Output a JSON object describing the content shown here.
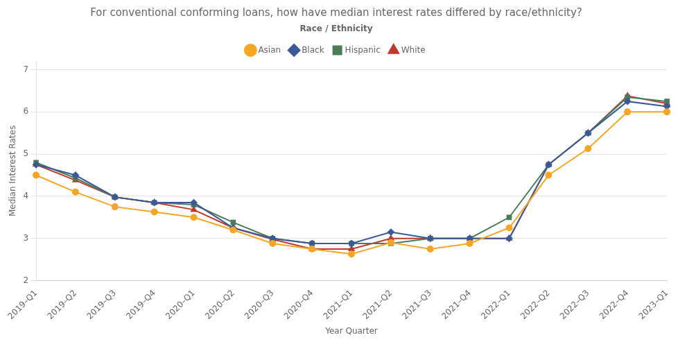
{
  "chart_data": {
    "type": "line",
    "title": "For conventional conforming loans, how have median interest rates differed by race/ethnicity?",
    "x_label": "Year Quarter",
    "y_label": "Median Interest Rates",
    "legend_title": "Race / Ethnicity",
    "categories": [
      "2019–Q1",
      "2019–Q2",
      "2019–Q3",
      "2019–Q4",
      "2020–Q1",
      "2020–Q2",
      "2020–Q3",
      "2020–Q4",
      "2021–Q1",
      "2021–Q2",
      "2021–Q3",
      "2021–Q4",
      "2022–Q1",
      "2022–Q2",
      "2022–Q3",
      "2022–Q4",
      "2023–Q1"
    ],
    "series": [
      {
        "name": "Asian",
        "color": "#f5a623",
        "marker": "circle",
        "values": [
          4.5,
          4.1,
          3.75,
          3.63,
          3.5,
          3.2,
          2.88,
          2.75,
          2.63,
          2.9,
          2.75,
          2.88,
          3.25,
          4.5,
          5.13,
          6.0,
          6.0
        ]
      },
      {
        "name": "Black",
        "color": "#3b5998",
        "marker": "diamond",
        "values": [
          4.75,
          4.5,
          3.98,
          3.85,
          3.85,
          3.25,
          3.0,
          2.88,
          2.88,
          3.15,
          3.0,
          3.0,
          3.0,
          4.75,
          5.5,
          6.25,
          6.13
        ]
      },
      {
        "name": "Hispanic",
        "color": "#4a7c59",
        "marker": "square",
        "values": [
          4.8,
          4.43,
          3.98,
          3.85,
          3.8,
          3.38,
          3.0,
          2.88,
          2.88,
          2.88,
          3.0,
          3.0,
          3.5,
          4.75,
          5.5,
          6.35,
          6.25
        ]
      },
      {
        "name": "White",
        "color": "#c0392b",
        "marker": "triangle",
        "values": [
          4.75,
          4.38,
          3.98,
          3.85,
          3.68,
          3.25,
          2.98,
          2.75,
          2.75,
          3.0,
          3.0,
          3.0,
          3.0,
          4.75,
          5.5,
          6.38,
          6.2
        ]
      }
    ],
    "ylim": [
      2.0,
      7.2
    ],
    "yticks": [
      2,
      3,
      4,
      5,
      6,
      7
    ],
    "grid": true,
    "legend": "top"
  }
}
